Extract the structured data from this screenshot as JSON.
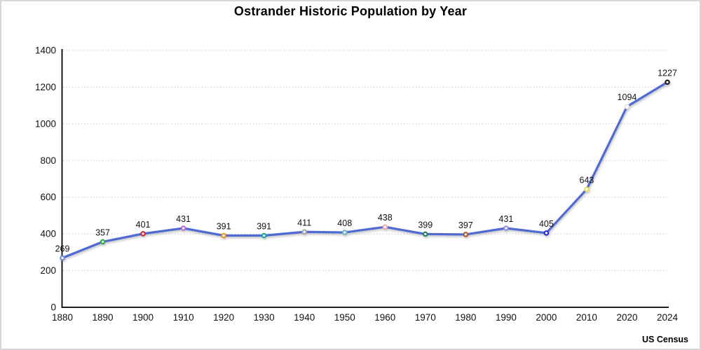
{
  "title": "Ostrander Historic Population by Year",
  "source": "US Census",
  "chart_data": {
    "type": "line",
    "title": "Ostrander Historic Population by Year",
    "xlabel": "",
    "ylabel": "",
    "categories": [
      "1880",
      "1890",
      "1900",
      "1910",
      "1920",
      "1930",
      "1940",
      "1950",
      "1960",
      "1970",
      "1980",
      "1990",
      "2000",
      "2010",
      "2020",
      "2024"
    ],
    "values": [
      269,
      357,
      401,
      431,
      391,
      391,
      411,
      408,
      438,
      399,
      397,
      431,
      405,
      643,
      1094,
      1227
    ],
    "point_labels": [
      "269",
      "357",
      "401",
      "431",
      "391",
      "391",
      "411",
      "408",
      "438",
      "399",
      "397",
      "431",
      "405",
      "643",
      "1094",
      "1227"
    ],
    "ylim": [
      0,
      1400
    ],
    "ytick_step": 200,
    "yticks": [
      0,
      200,
      400,
      600,
      800,
      1000,
      1200,
      1400
    ],
    "grid": true,
    "grid_style": "dotted",
    "legend_position": "none",
    "line_color": "#4f6bd3",
    "marker_colors": [
      "#7189d9",
      "#2fae3b",
      "#d2222f",
      "#bd6fd0",
      "#ec9422",
      "#17a79b",
      "#a6a6a6",
      "#6cb3c8",
      "#f2a7b3",
      "#1f8355",
      "#b05a24",
      "#968ce2",
      "#2a2ad6",
      "#e6e05a",
      "#e6e4f4",
      "#1a1a1a"
    ],
    "marker_fill": "#ffffff",
    "grid_color": "#c9c9c9",
    "axis_color": "#000000",
    "label_color": "#111111",
    "source": "US Census"
  }
}
